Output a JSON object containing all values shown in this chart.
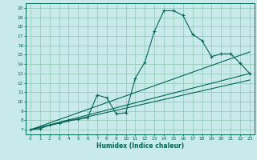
{
  "title": "",
  "xlabel": "Humidex (Indice chaleur)",
  "bg_color": "#c8eaea",
  "grid_color": "#99ccbb",
  "line_color": "#006655",
  "xlim": [
    -0.5,
    23.5
  ],
  "ylim": [
    6.5,
    20.5
  ],
  "xticks": [
    0,
    1,
    2,
    3,
    4,
    5,
    6,
    7,
    8,
    9,
    10,
    11,
    12,
    13,
    14,
    15,
    16,
    17,
    18,
    19,
    20,
    21,
    22,
    23
  ],
  "yticks": [
    7,
    8,
    9,
    10,
    11,
    12,
    13,
    14,
    15,
    16,
    17,
    18,
    19,
    20
  ],
  "main_curve_x": [
    0,
    1,
    2,
    3,
    4,
    5,
    6,
    7,
    8,
    9,
    10,
    11,
    12,
    13,
    14,
    15,
    16,
    17,
    18,
    19,
    20,
    21,
    22,
    23
  ],
  "main_curve_y": [
    7.0,
    7.1,
    7.5,
    7.7,
    8.0,
    8.1,
    8.3,
    10.7,
    10.4,
    8.7,
    8.8,
    12.5,
    14.2,
    17.5,
    19.7,
    19.7,
    19.2,
    17.2,
    16.5,
    14.8,
    15.1,
    15.1,
    14.1,
    13.0
  ],
  "line1_x": [
    0,
    23
  ],
  "line1_y": [
    7.0,
    15.3
  ],
  "line2_x": [
    0,
    23
  ],
  "line2_y": [
    7.0,
    13.0
  ],
  "line3_x": [
    0,
    23
  ],
  "line3_y": [
    7.0,
    12.3
  ]
}
